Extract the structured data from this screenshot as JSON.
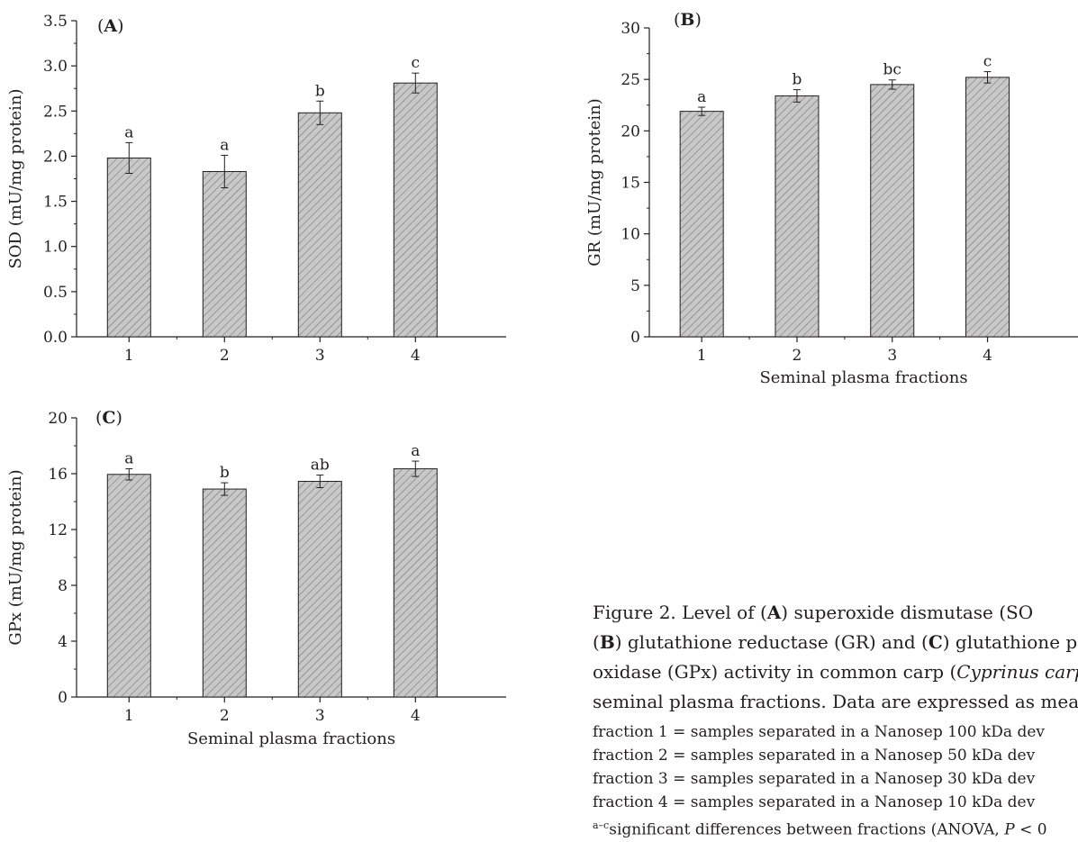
{
  "chart_data": [
    {
      "type": "bar",
      "panel_label": "A",
      "ylabel": "SOD (mU/mg protein)",
      "xlabel": "",
      "categories": [
        "1",
        "2",
        "3",
        "4"
      ],
      "values": [
        1.98,
        1.83,
        2.48,
        2.81
      ],
      "errors": [
        0.17,
        0.18,
        0.13,
        0.11
      ],
      "letters": [
        "a",
        "a",
        "b",
        "c"
      ],
      "ylim": [
        0,
        3.5
      ],
      "yticks": [
        "0.0",
        "0.5",
        "1.0",
        "1.5",
        "2.0",
        "2.5",
        "3.0",
        "3.5"
      ],
      "bar_fill": "#c8c8c8",
      "hatch": "diagonal"
    },
    {
      "type": "bar",
      "panel_label": "B",
      "ylabel": "GR (mU/mg protein)",
      "xlabel": "Seminal plasma fractions",
      "categories": [
        "1",
        "2",
        "3",
        "4"
      ],
      "values": [
        21.9,
        23.4,
        24.5,
        25.2
      ],
      "errors": [
        0.4,
        0.6,
        0.45,
        0.55
      ],
      "letters": [
        "a",
        "b",
        "bc",
        "c"
      ],
      "ylim": [
        0,
        30
      ],
      "yticks": [
        "0",
        "5",
        "10",
        "15",
        "20",
        "25",
        "30"
      ],
      "bar_fill": "#c8c8c8",
      "hatch": "diagonal"
    },
    {
      "type": "bar",
      "panel_label": "C",
      "ylabel": "GPx (mU/mg protein)",
      "xlabel": "Seminal plasma fractions",
      "categories": [
        "1",
        "2",
        "3",
        "4"
      ],
      "values": [
        15.95,
        14.9,
        15.45,
        16.35
      ],
      "errors": [
        0.4,
        0.45,
        0.45,
        0.55
      ],
      "letters": [
        "a",
        "b",
        "ab",
        "a"
      ],
      "ylim": [
        0,
        20
      ],
      "yticks": [
        "0",
        "4",
        "8",
        "12",
        "16",
        "20"
      ],
      "bar_fill": "#c8c8c8",
      "hatch": "diagonal"
    }
  ],
  "caption": {
    "figure_label": "Figure 2.",
    "line1_a": "Level of (",
    "line1_b": ") superoxide dismutase (SO",
    "line2_a": ") glutathione reductase (GR) and (",
    "line2_b": ") glutathione p",
    "line3_a": "oxidase (GPx) activity in common carp (",
    "line3_b": "Cyprinus carp",
    "line4": "seminal plasma fractions. Data are expressed as mean ±",
    "notes": [
      "fraction 1 = samples separated in a Nanosep 100 kDa dev",
      "fraction 2 = samples separated in a Nanosep 50 kDa dev",
      "fraction 3 = samples separated in a Nanosep 30 kDa dev",
      "fraction 4 = samples separated in a Nanosep 10 kDa dev"
    ],
    "sig_sup": "a–c",
    "sig_text": "significant differences between fractions (ANOVA, ",
    "sig_p": "P",
    "sig_end": " < 0"
  }
}
